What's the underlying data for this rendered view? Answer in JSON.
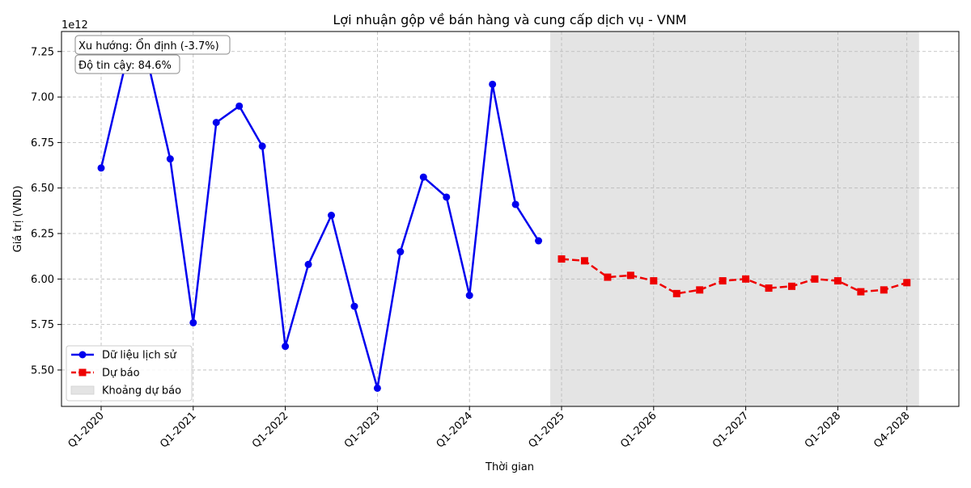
{
  "chart_data": {
    "type": "line",
    "title": "Lợi nhuận gộp về bán hàng và cung cấp dịch vụ - VNM",
    "xlabel": "Thời gian",
    "ylabel": "Giá trị (VND)",
    "y_offset_label": "1e12",
    "y_scale": 1000000000000.0,
    "ylim": [
      5.3,
      7.36
    ],
    "y_ticks": [
      5.5,
      5.75,
      6.0,
      6.25,
      6.5,
      6.75,
      7.0,
      7.25
    ],
    "y_tick_labels": [
      "5.50",
      "5.75",
      "6.00",
      "6.25",
      "6.50",
      "6.75",
      "7.00",
      "7.25"
    ],
    "x_tick_labels": [
      "Q1-2020",
      "Q1-2021",
      "Q1-2022",
      "Q1-2023",
      "Q1-2024",
      "Q1-2025",
      "Q1-2026",
      "Q1-2027",
      "Q1-2028",
      "Q4-2028"
    ],
    "grid": true,
    "legend_position": "lower-left",
    "annotations": [
      "Xu hướng: Ổn định (-3.7%)",
      "Độ tin cậy: 84.6%"
    ],
    "series": [
      {
        "name": "Dữ liệu lịch sử",
        "style": "solid-circle",
        "color": "#0000ee",
        "x": [
          "Q1-2020",
          "Q2-2020",
          "Q3-2020",
          "Q4-2020",
          "Q1-2021",
          "Q2-2021",
          "Q3-2021",
          "Q4-2021",
          "Q1-2022",
          "Q2-2022",
          "Q3-2022",
          "Q4-2022",
          "Q1-2023",
          "Q2-2023",
          "Q3-2023",
          "Q4-2023",
          "Q1-2024",
          "Q2-2024",
          "Q3-2024",
          "Q4-2024"
        ],
        "values": [
          6.61,
          7.15,
          7.21,
          6.66,
          5.76,
          6.86,
          6.95,
          6.73,
          5.63,
          6.08,
          6.35,
          5.85,
          5.4,
          6.15,
          6.56,
          6.45,
          5.91,
          7.07,
          6.41,
          6.21
        ]
      },
      {
        "name": "Dự báo",
        "style": "dashed-square",
        "color": "#ee0000",
        "x": [
          "Q1-2025",
          "Q2-2025",
          "Q3-2025",
          "Q4-2025",
          "Q1-2026",
          "Q2-2026",
          "Q3-2026",
          "Q4-2026",
          "Q1-2027",
          "Q2-2027",
          "Q3-2027",
          "Q4-2027",
          "Q1-2028",
          "Q2-2028",
          "Q3-2028",
          "Q4-2028"
        ],
        "values": [
          6.11,
          6.1,
          6.01,
          6.02,
          5.99,
          5.92,
          5.94,
          5.99,
          6.0,
          5.95,
          5.96,
          6.0,
          5.99,
          5.93,
          5.94,
          5.98
        ]
      }
    ],
    "shaded_region": {
      "name": "Khoảng dự báo",
      "from": "Q1-2025",
      "to": "Q4-2028",
      "color": "#d9d9d9"
    }
  }
}
